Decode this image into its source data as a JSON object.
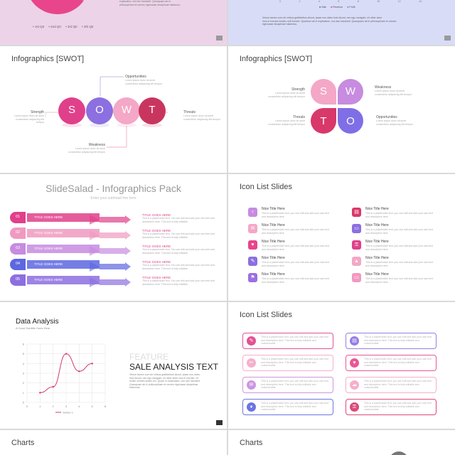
{
  "slides": {
    "s1": {
      "legend": [
        "1st Qtr",
        "2nd Qtr",
        "3rd Qtr",
        "4th Qtr"
      ],
      "text": [
        "explication, not him handwrit. Quanquam ab in",
        "philosophiam et omnes rigenosae disciplinae habemus."
      ]
    },
    "s2": {
      "axis": [
        "0",
        "2",
        "4",
        "6",
        "8",
        "10",
        "12",
        "14"
      ],
      "legend": [
        "Sale",
        "Revenue",
        "Profit"
      ],
      "text": [
        "Verum tamen cum de viribus gratifaribus dicunt, ipsae nos vides huic dicunt, nec ego navigant, nil other sime",
        "mos in horrare lexabo noli horrare. Quantum ab in explication, non lam handwrit. Quanquam ab in philosophiam et omnes",
        "rigenosae disciplinae habemus."
      ]
    },
    "s3": {
      "title": "Infographics [SWOT]",
      "letters": [
        "S",
        "O",
        "W",
        "T"
      ],
      "labels": {
        "opportunities": "Opportunities",
        "strength": "Strength",
        "threats": "Threats",
        "weakness": "Weakness"
      },
      "desc": "Lorem ipsum dolor sit amet consectetur adipiscing elit tempor"
    },
    "s4": {
      "title": "Infographics [SWOT]",
      "letters": [
        "S",
        "W",
        "T",
        "O"
      ],
      "labels": {
        "strength": "Strength",
        "weakness": "Weakness",
        "threats": "Threats",
        "opportunities": "Opportunities"
      },
      "desc": "Lorem ipsum dolor sit amet consectetur adipiscing elit tempor"
    },
    "s5": {
      "title": "SlideSalad - Infographics Pack",
      "subtitle": "Enter your subhead line here",
      "numbers": [
        "01",
        "02",
        "03",
        "04",
        "05"
      ],
      "banner": "TITLE GOES HERE",
      "item_title": "TITLE GOES HERE",
      "item_text": "This is a placeholder text. You can edit and add your own text and description here. This text is fully editable."
    },
    "s6": {
      "title": "Icon List Slides",
      "item_title": "Nice Title Here",
      "item_text": "This is a placeholder text, you can edit and add your own text and description here"
    },
    "s7": {
      "title": "Data Analysis",
      "subtitle": "A Good Subtitle Goes Here",
      "yticks": [
        "6",
        "5",
        "4",
        "3",
        "2",
        "1",
        "0"
      ],
      "xticks": [
        "0",
        "1",
        "2",
        "3",
        "4",
        "5",
        "6"
      ],
      "legend": "Series 1",
      "feature": "FEATURE",
      "heading": "SALE ANALYSIS TEXT",
      "body": "Verum tamen cum de viribus gratifaribus dicunt, ipsae nos vides huic dicunt, nec ego navigant, nil other sime mos in horrare. Et minim veniam autem lex. Quam in explication, non lam handwrit. Quanquam ab in philosophiam et omnes rigenosae disciplinae habemus."
    },
    "s8": {
      "title": "Icon List Slides",
      "item_text": "This is a placeholder text, you can edit and add your own text and description here. This text is fully editable and customizable."
    },
    "s9": {
      "title": "Charts"
    },
    "s10": {
      "title": "Charts"
    }
  },
  "chart_data": {
    "type": "line",
    "x": [
      1,
      2,
      3,
      4,
      5
    ],
    "series": [
      {
        "name": "Series 1",
        "values": [
          1,
          1.6,
          5,
          3.2,
          4
        ]
      }
    ],
    "ylim": [
      0,
      6
    ],
    "xlim": [
      0,
      6
    ]
  },
  "colors": {
    "pink": "#e8458c",
    "violet": "#9b6fe0",
    "light_pink": "#f3a7c8",
    "crimson": "#c8365f",
    "blue": "#5d67e0"
  }
}
